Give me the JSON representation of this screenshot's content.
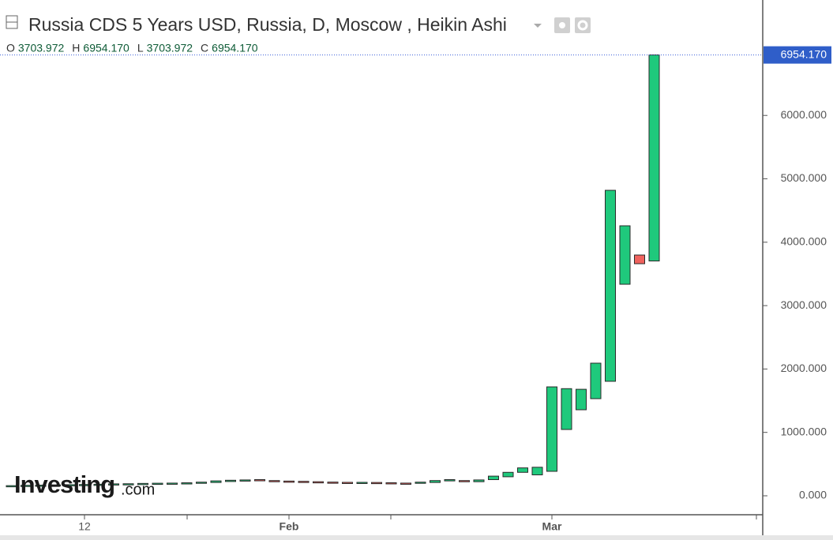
{
  "chart_data": {
    "type": "candlestick",
    "title": "Russia CDS 5 Years USD, Russia, D, Moscow , Heikin Ashi",
    "header_ohlc": [
      {
        "key": "O",
        "text": "3703.972"
      },
      {
        "key": "H",
        "text": "6954.170"
      },
      {
        "key": "L",
        "text": "3703.972"
      },
      {
        "key": "C",
        "text": "6954.170"
      }
    ],
    "last_price": {
      "value": 6954.17,
      "label": "6954.170"
    },
    "watermark": [
      "Investing",
      ".com"
    ],
    "categories": [
      null,
      null,
      null,
      null,
      null,
      "12",
      null,
      null,
      null,
      null,
      null,
      null,
      null,
      null,
      null,
      null,
      null,
      null,
      null,
      "Feb",
      null,
      null,
      null,
      null,
      null,
      null,
      null,
      null,
      null,
      null,
      null,
      null,
      null,
      null,
      null,
      null,
      null,
      "Mar",
      null,
      null,
      null,
      null,
      null,
      null,
      null
    ],
    "open": [
      150,
      155,
      160,
      162,
      165,
      168,
      170,
      175,
      180,
      183,
      188,
      190,
      195,
      200,
      210,
      225,
      240,
      255,
      240,
      232,
      228,
      222,
      216,
      212,
      208,
      210,
      206,
      200,
      198,
      210,
      235,
      240,
      222,
      255,
      300,
      370,
      330,
      386,
      1046,
      1357,
      1532,
      1806,
      3337,
      3798,
      3703.972
    ],
    "close": [
      160,
      165,
      168,
      172,
      175,
      178,
      182,
      188,
      190,
      195,
      198,
      200,
      205,
      215,
      235,
      245,
      250,
      240,
      232,
      228,
      222,
      216,
      212,
      208,
      212,
      206,
      200,
      198,
      215,
      240,
      255,
      222,
      250,
      310,
      370,
      440,
      450,
      1718,
      1690,
      1680,
      2092,
      4819,
      4259,
      3661,
      6954.17
    ],
    "up_color": "#1fc97c",
    "down_color": "#f0625e",
    "ylim": [
      -299,
      7821
    ],
    "yticks": [
      {
        "value": 0,
        "label": "0.000"
      },
      {
        "value": 1000,
        "label": "1000.000"
      },
      {
        "value": 2000,
        "label": "2000.000"
      },
      {
        "value": 3000,
        "label": "3000.000"
      },
      {
        "value": 4000,
        "label": "4000.000"
      },
      {
        "value": 5000,
        "label": "5000.000"
      },
      {
        "value": 6000,
        "label": "6000.000"
      }
    ]
  }
}
